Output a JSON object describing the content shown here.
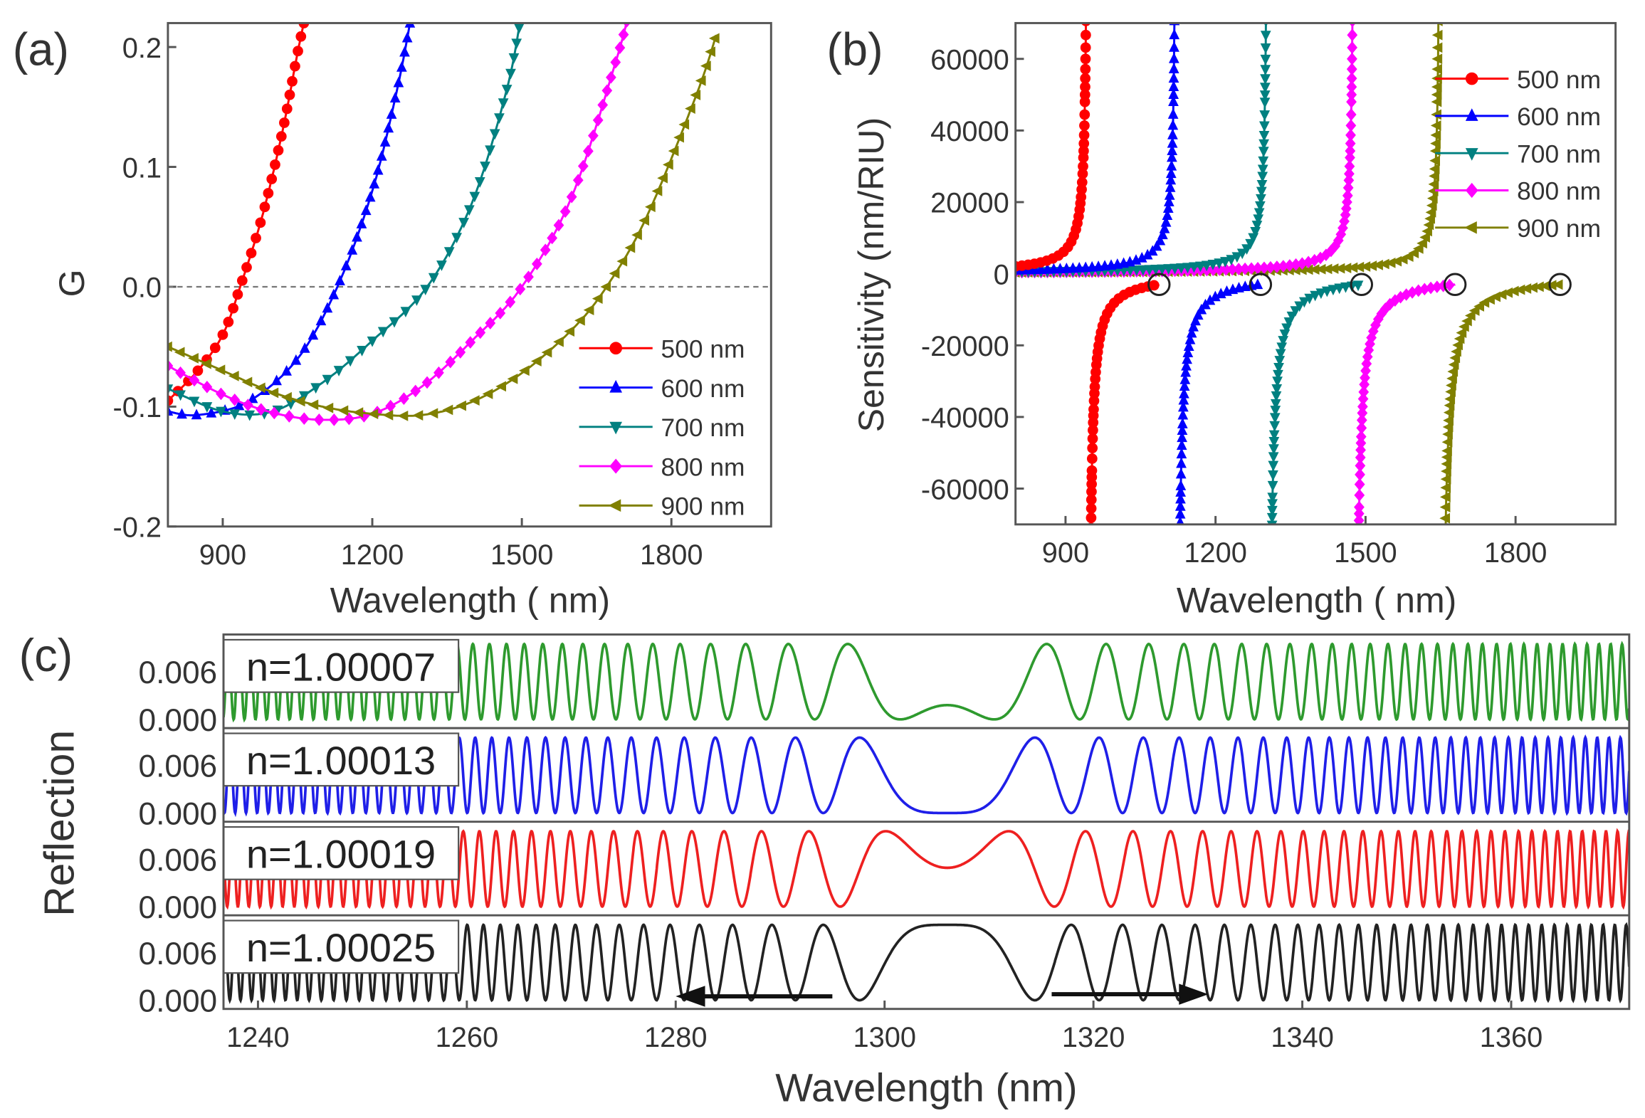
{
  "chart_data": [
    {
      "panel": "(a)",
      "type": "line",
      "xlabel": "Wavelength ( nm)",
      "ylabel": "G",
      "xlim": [
        790,
        2000
      ],
      "ylim": [
        -0.2,
        0.22
      ],
      "xticks": [
        900,
        1200,
        1500,
        1800
      ],
      "yticks": [
        -0.2,
        -0.1,
        0.0,
        0.1,
        0.2
      ],
      "ytick_labels": [
        "-0.2",
        "-0.1",
        "0.0",
        "0.1",
        "0.2"
      ],
      "reference_line": {
        "y": 0,
        "style": "dashed"
      },
      "legend": "bottom-right",
      "series": [
        {
          "name": "500 nm",
          "color": "#ff0000",
          "marker": "circle",
          "points": [
            [
              790,
              -0.095
            ],
            [
              850,
              -0.07
            ],
            [
              900,
              -0.04
            ],
            [
              935,
              0
            ],
            [
              980,
              0.06
            ],
            [
              1020,
              0.13
            ],
            [
              1050,
              0.195
            ],
            [
              1068,
              0.23
            ]
          ]
        },
        {
          "name": "600 nm",
          "color": "#0000ff",
          "marker": "triangle-up",
          "points": [
            [
              790,
              -0.104
            ],
            [
              850,
              -0.107
            ],
            [
              950,
              -0.096
            ],
            [
              1050,
              -0.06
            ],
            [
              1130,
              0
            ],
            [
              1200,
              0.08
            ],
            [
              1250,
              0.165
            ],
            [
              1280,
              0.23
            ]
          ]
        },
        {
          "name": "700 nm",
          "color": "#008080",
          "marker": "triangle-down",
          "points": [
            [
              790,
              -0.085
            ],
            [
              900,
              -0.104
            ],
            [
              1000,
              -0.104
            ],
            [
              1100,
              -0.08
            ],
            [
              1200,
              -0.045
            ],
            [
              1310,
              0
            ],
            [
              1400,
              0.07
            ],
            [
              1470,
              0.165
            ],
            [
              1500,
              0.23
            ]
          ]
        },
        {
          "name": "800 nm",
          "color": "#ff00ff",
          "marker": "diamond",
          "points": [
            [
              790,
              -0.066
            ],
            [
              900,
              -0.09
            ],
            [
              1000,
              -0.105
            ],
            [
              1100,
              -0.111
            ],
            [
              1200,
              -0.106
            ],
            [
              1300,
              -0.083
            ],
            [
              1400,
              -0.045
            ],
            [
              1500,
              0
            ],
            [
              1600,
              0.075
            ],
            [
              1690,
              0.19
            ],
            [
              1715,
              0.23
            ]
          ]
        },
        {
          "name": "900 nm",
          "color": "#808000",
          "marker": "triangle-left",
          "points": [
            [
              790,
              -0.05
            ],
            [
              900,
              -0.07
            ],
            [
              1000,
              -0.088
            ],
            [
              1100,
              -0.1
            ],
            [
              1200,
              -0.106
            ],
            [
              1300,
              -0.107
            ],
            [
              1400,
              -0.096
            ],
            [
              1500,
              -0.072
            ],
            [
              1600,
              -0.036
            ],
            [
              1670,
              0
            ],
            [
              1750,
              0.058
            ],
            [
              1850,
              0.16
            ],
            [
              1890,
              0.21
            ]
          ]
        }
      ]
    },
    {
      "panel": "(b)",
      "type": "line",
      "xlabel": "Wavelength ( nm)",
      "ylabel": "Sensitivity (nm/RIU)",
      "xlim": [
        800,
        2000
      ],
      "ylim": [
        -70000,
        70000
      ],
      "xticks": [
        900,
        1200,
        1500,
        1800
      ],
      "yticks": [
        -60000,
        -40000,
        -20000,
        0,
        20000,
        40000,
        60000
      ],
      "legend": "top-right",
      "series": [
        {
          "name": "500 nm",
          "color": "#ff0000",
          "marker": "circle",
          "pole_nm": 945,
          "branch_end_nm": 1087,
          "branch_end_value": -3000
        },
        {
          "name": "600 nm",
          "color": "#0000ff",
          "marker": "triangle-up",
          "pole_nm": 1122,
          "branch_end_nm": 1290,
          "branch_end_value": -3000
        },
        {
          "name": "700 nm",
          "color": "#008080",
          "marker": "triangle-down",
          "pole_nm": 1305,
          "branch_end_nm": 1492,
          "branch_end_value": -3000
        },
        {
          "name": "800 nm",
          "color": "#ff00ff",
          "marker": "diamond",
          "pole_nm": 1478,
          "branch_end_nm": 1679,
          "branch_end_value": -3000
        },
        {
          "name": "900 nm",
          "color": "#808000",
          "marker": "triangle-left",
          "pole_nm": 1650,
          "branch_end_nm": 1889,
          "branch_end_value": -3000
        }
      ],
      "annotation": "open circles mark branch end points"
    },
    {
      "panel": "(c)",
      "type": "line",
      "xlabel": "Wavelength (nm)",
      "ylabel": "Reflection",
      "xlim": [
        1236.7,
        1371.3
      ],
      "xticks": [
        1240,
        1260,
        1280,
        1300,
        1320,
        1340,
        1360
      ],
      "yticks": [
        0.0,
        0.006
      ],
      "ytick_labels": [
        "0.000",
        "0.006"
      ],
      "ylim": [
        -0.0011,
        0.0107
      ],
      "center_nm": 1306,
      "peak_reflection": 0.0095,
      "series": [
        {
          "name": "n=1.00007",
          "color": "#2e9a2e",
          "center_phase": -0.45
        },
        {
          "name": "n=1.00013",
          "color": "#1f1fe8",
          "center_phase": 0.0
        },
        {
          "name": "n=1.00019",
          "color": "#ee2020",
          "center_phase": 0.8
        },
        {
          "name": "n=1.00025",
          "color": "#222222",
          "center_phase": 1.5708
        }
      ],
      "arrows": [
        {
          "from": 1295,
          "to": 1280,
          "direction": "left"
        },
        {
          "from": 1316,
          "to": 1331,
          "direction": "right"
        }
      ]
    }
  ]
}
